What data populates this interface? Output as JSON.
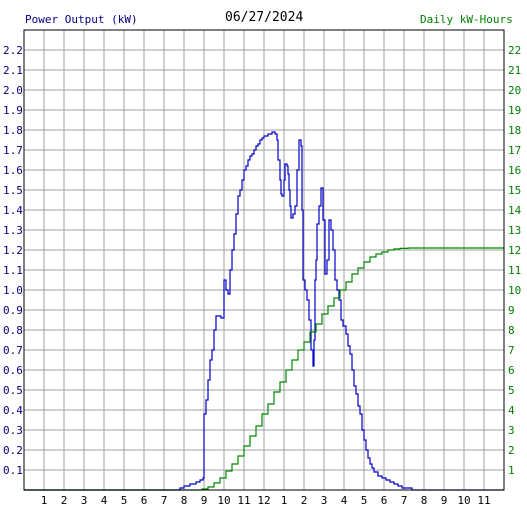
{
  "header": {
    "left_label": "Power Output (kW)",
    "date": "06/27/2024",
    "right_label": "Daily kW-Hours"
  },
  "colors": {
    "background": "#ffffff",
    "grid": "#a0a0a0",
    "frame": "#000000",
    "power": "#0000cc",
    "energy": "#008800",
    "left_axis_text": "#000080",
    "right_axis_text": "#008000",
    "x_axis_text": "#000000"
  },
  "chart_data": {
    "type": "line",
    "title": "06/27/2024",
    "grid": true,
    "x_axis": {
      "range_hours": [
        0,
        24
      ],
      "tick_labels": [
        "1",
        "2",
        "3",
        "4",
        "5",
        "6",
        "7",
        "8",
        "9",
        "10",
        "11",
        "12",
        "1",
        "2",
        "3",
        "4",
        "5",
        "6",
        "7",
        "8",
        "9",
        "10",
        "11"
      ]
    },
    "y_left": {
      "label": "Power Output (kW)",
      "range": [
        0,
        2.3
      ],
      "tick_labels": [
        "0.1",
        "0.2",
        "0.3",
        "0.4",
        "0.5",
        "0.6",
        "0.7",
        "0.8",
        "0.9",
        "1.0",
        "1.1",
        "1.2",
        "1.3",
        "1.4",
        "1.5",
        "1.6",
        "1.7",
        "1.8",
        "1.9",
        "2.0",
        "2.1",
        "2.2"
      ]
    },
    "y_right": {
      "label": "Daily kW-Hours",
      "range": [
        0,
        23
      ],
      "tick_labels": [
        "1",
        "2",
        "3",
        "4",
        "5",
        "6",
        "7",
        "8",
        "9",
        "10",
        "11",
        "12",
        "13",
        "14",
        "15",
        "16",
        "17",
        "18",
        "19",
        "20",
        "21",
        "22"
      ]
    },
    "series": [
      {
        "name": "Power Output (kW)",
        "axis": "left",
        "style": "step",
        "points": [
          [
            0,
            0
          ],
          [
            7.6,
            0
          ],
          [
            7.8,
            0.01
          ],
          [
            8.0,
            0.02
          ],
          [
            8.3,
            0.03
          ],
          [
            8.6,
            0.04
          ],
          [
            8.8,
            0.05
          ],
          [
            8.95,
            0.06
          ],
          [
            9.0,
            0.38
          ],
          [
            9.1,
            0.45
          ],
          [
            9.2,
            0.55
          ],
          [
            9.3,
            0.65
          ],
          [
            9.4,
            0.7
          ],
          [
            9.5,
            0.8
          ],
          [
            9.6,
            0.87
          ],
          [
            9.7,
            0.87
          ],
          [
            9.85,
            0.86
          ],
          [
            10.0,
            1.05
          ],
          [
            10.1,
            1.0
          ],
          [
            10.2,
            0.98
          ],
          [
            10.3,
            1.1
          ],
          [
            10.4,
            1.2
          ],
          [
            10.5,
            1.28
          ],
          [
            10.6,
            1.38
          ],
          [
            10.7,
            1.47
          ],
          [
            10.8,
            1.5
          ],
          [
            10.9,
            1.55
          ],
          [
            11.0,
            1.6
          ],
          [
            11.1,
            1.62
          ],
          [
            11.2,
            1.65
          ],
          [
            11.3,
            1.67
          ],
          [
            11.4,
            1.68
          ],
          [
            11.5,
            1.7
          ],
          [
            11.6,
            1.72
          ],
          [
            11.7,
            1.73
          ],
          [
            11.8,
            1.75
          ],
          [
            11.9,
            1.76
          ],
          [
            12.0,
            1.77
          ],
          [
            12.2,
            1.78
          ],
          [
            12.4,
            1.79
          ],
          [
            12.55,
            1.78
          ],
          [
            12.65,
            1.75
          ],
          [
            12.7,
            1.65
          ],
          [
            12.8,
            1.55
          ],
          [
            12.85,
            1.48
          ],
          [
            12.9,
            1.47
          ],
          [
            13.0,
            1.55
          ],
          [
            13.05,
            1.63
          ],
          [
            13.15,
            1.62
          ],
          [
            13.2,
            1.58
          ],
          [
            13.25,
            1.5
          ],
          [
            13.3,
            1.42
          ],
          [
            13.35,
            1.36
          ],
          [
            13.45,
            1.38
          ],
          [
            13.55,
            1.42
          ],
          [
            13.65,
            1.6
          ],
          [
            13.75,
            1.75
          ],
          [
            13.85,
            1.72
          ],
          [
            13.9,
            1.4
          ],
          [
            13.95,
            1.05
          ],
          [
            14.05,
            1.0
          ],
          [
            14.15,
            0.95
          ],
          [
            14.25,
            0.85
          ],
          [
            14.35,
            0.7
          ],
          [
            14.45,
            0.62
          ],
          [
            14.5,
            0.75
          ],
          [
            14.55,
            1.05
          ],
          [
            14.6,
            1.15
          ],
          [
            14.65,
            1.33
          ],
          [
            14.75,
            1.42
          ],
          [
            14.85,
            1.51
          ],
          [
            14.95,
            1.35
          ],
          [
            15.05,
            1.08
          ],
          [
            15.15,
            1.15
          ],
          [
            15.25,
            1.35
          ],
          [
            15.35,
            1.3
          ],
          [
            15.45,
            1.2
          ],
          [
            15.55,
            1.05
          ],
          [
            15.65,
            1.0
          ],
          [
            15.75,
            0.95
          ],
          [
            15.85,
            0.85
          ],
          [
            15.95,
            0.82
          ],
          [
            16.1,
            0.78
          ],
          [
            16.2,
            0.72
          ],
          [
            16.3,
            0.68
          ],
          [
            16.4,
            0.6
          ],
          [
            16.5,
            0.52
          ],
          [
            16.6,
            0.48
          ],
          [
            16.7,
            0.42
          ],
          [
            16.8,
            0.38
          ],
          [
            16.9,
            0.3
          ],
          [
            17.0,
            0.25
          ],
          [
            17.1,
            0.2
          ],
          [
            17.2,
            0.16
          ],
          [
            17.3,
            0.13
          ],
          [
            17.4,
            0.11
          ],
          [
            17.5,
            0.09
          ],
          [
            17.7,
            0.07
          ],
          [
            17.9,
            0.06
          ],
          [
            18.1,
            0.05
          ],
          [
            18.3,
            0.04
          ],
          [
            18.5,
            0.03
          ],
          [
            18.7,
            0.02
          ],
          [
            18.9,
            0.01
          ],
          [
            19.2,
            0.01
          ],
          [
            19.4,
            0
          ],
          [
            24,
            0
          ]
        ]
      },
      {
        "name": "Daily kW-Hours",
        "axis": "right",
        "style": "step",
        "points": [
          [
            0,
            0
          ],
          [
            8.6,
            0
          ],
          [
            8.9,
            0.05
          ],
          [
            9.2,
            0.15
          ],
          [
            9.5,
            0.35
          ],
          [
            9.8,
            0.6
          ],
          [
            10.1,
            0.95
          ],
          [
            10.4,
            1.3
          ],
          [
            10.7,
            1.7
          ],
          [
            11.0,
            2.2
          ],
          [
            11.3,
            2.7
          ],
          [
            11.6,
            3.2
          ],
          [
            11.9,
            3.8
          ],
          [
            12.2,
            4.3
          ],
          [
            12.5,
            4.9
          ],
          [
            12.8,
            5.4
          ],
          [
            13.1,
            6.0
          ],
          [
            13.4,
            6.5
          ],
          [
            13.7,
            7.0
          ],
          [
            14.0,
            7.4
          ],
          [
            14.3,
            7.9
          ],
          [
            14.6,
            8.3
          ],
          [
            14.9,
            8.8
          ],
          [
            15.2,
            9.2
          ],
          [
            15.5,
            9.6
          ],
          [
            15.8,
            10.0
          ],
          [
            16.1,
            10.4
          ],
          [
            16.4,
            10.8
          ],
          [
            16.7,
            11.1
          ],
          [
            17.0,
            11.4
          ],
          [
            17.3,
            11.65
          ],
          [
            17.6,
            11.8
          ],
          [
            17.9,
            11.9
          ],
          [
            18.2,
            12.0
          ],
          [
            18.5,
            12.05
          ],
          [
            18.8,
            12.08
          ],
          [
            19.2,
            12.1
          ],
          [
            20.0,
            12.1
          ],
          [
            24,
            12.1
          ]
        ]
      }
    ]
  }
}
